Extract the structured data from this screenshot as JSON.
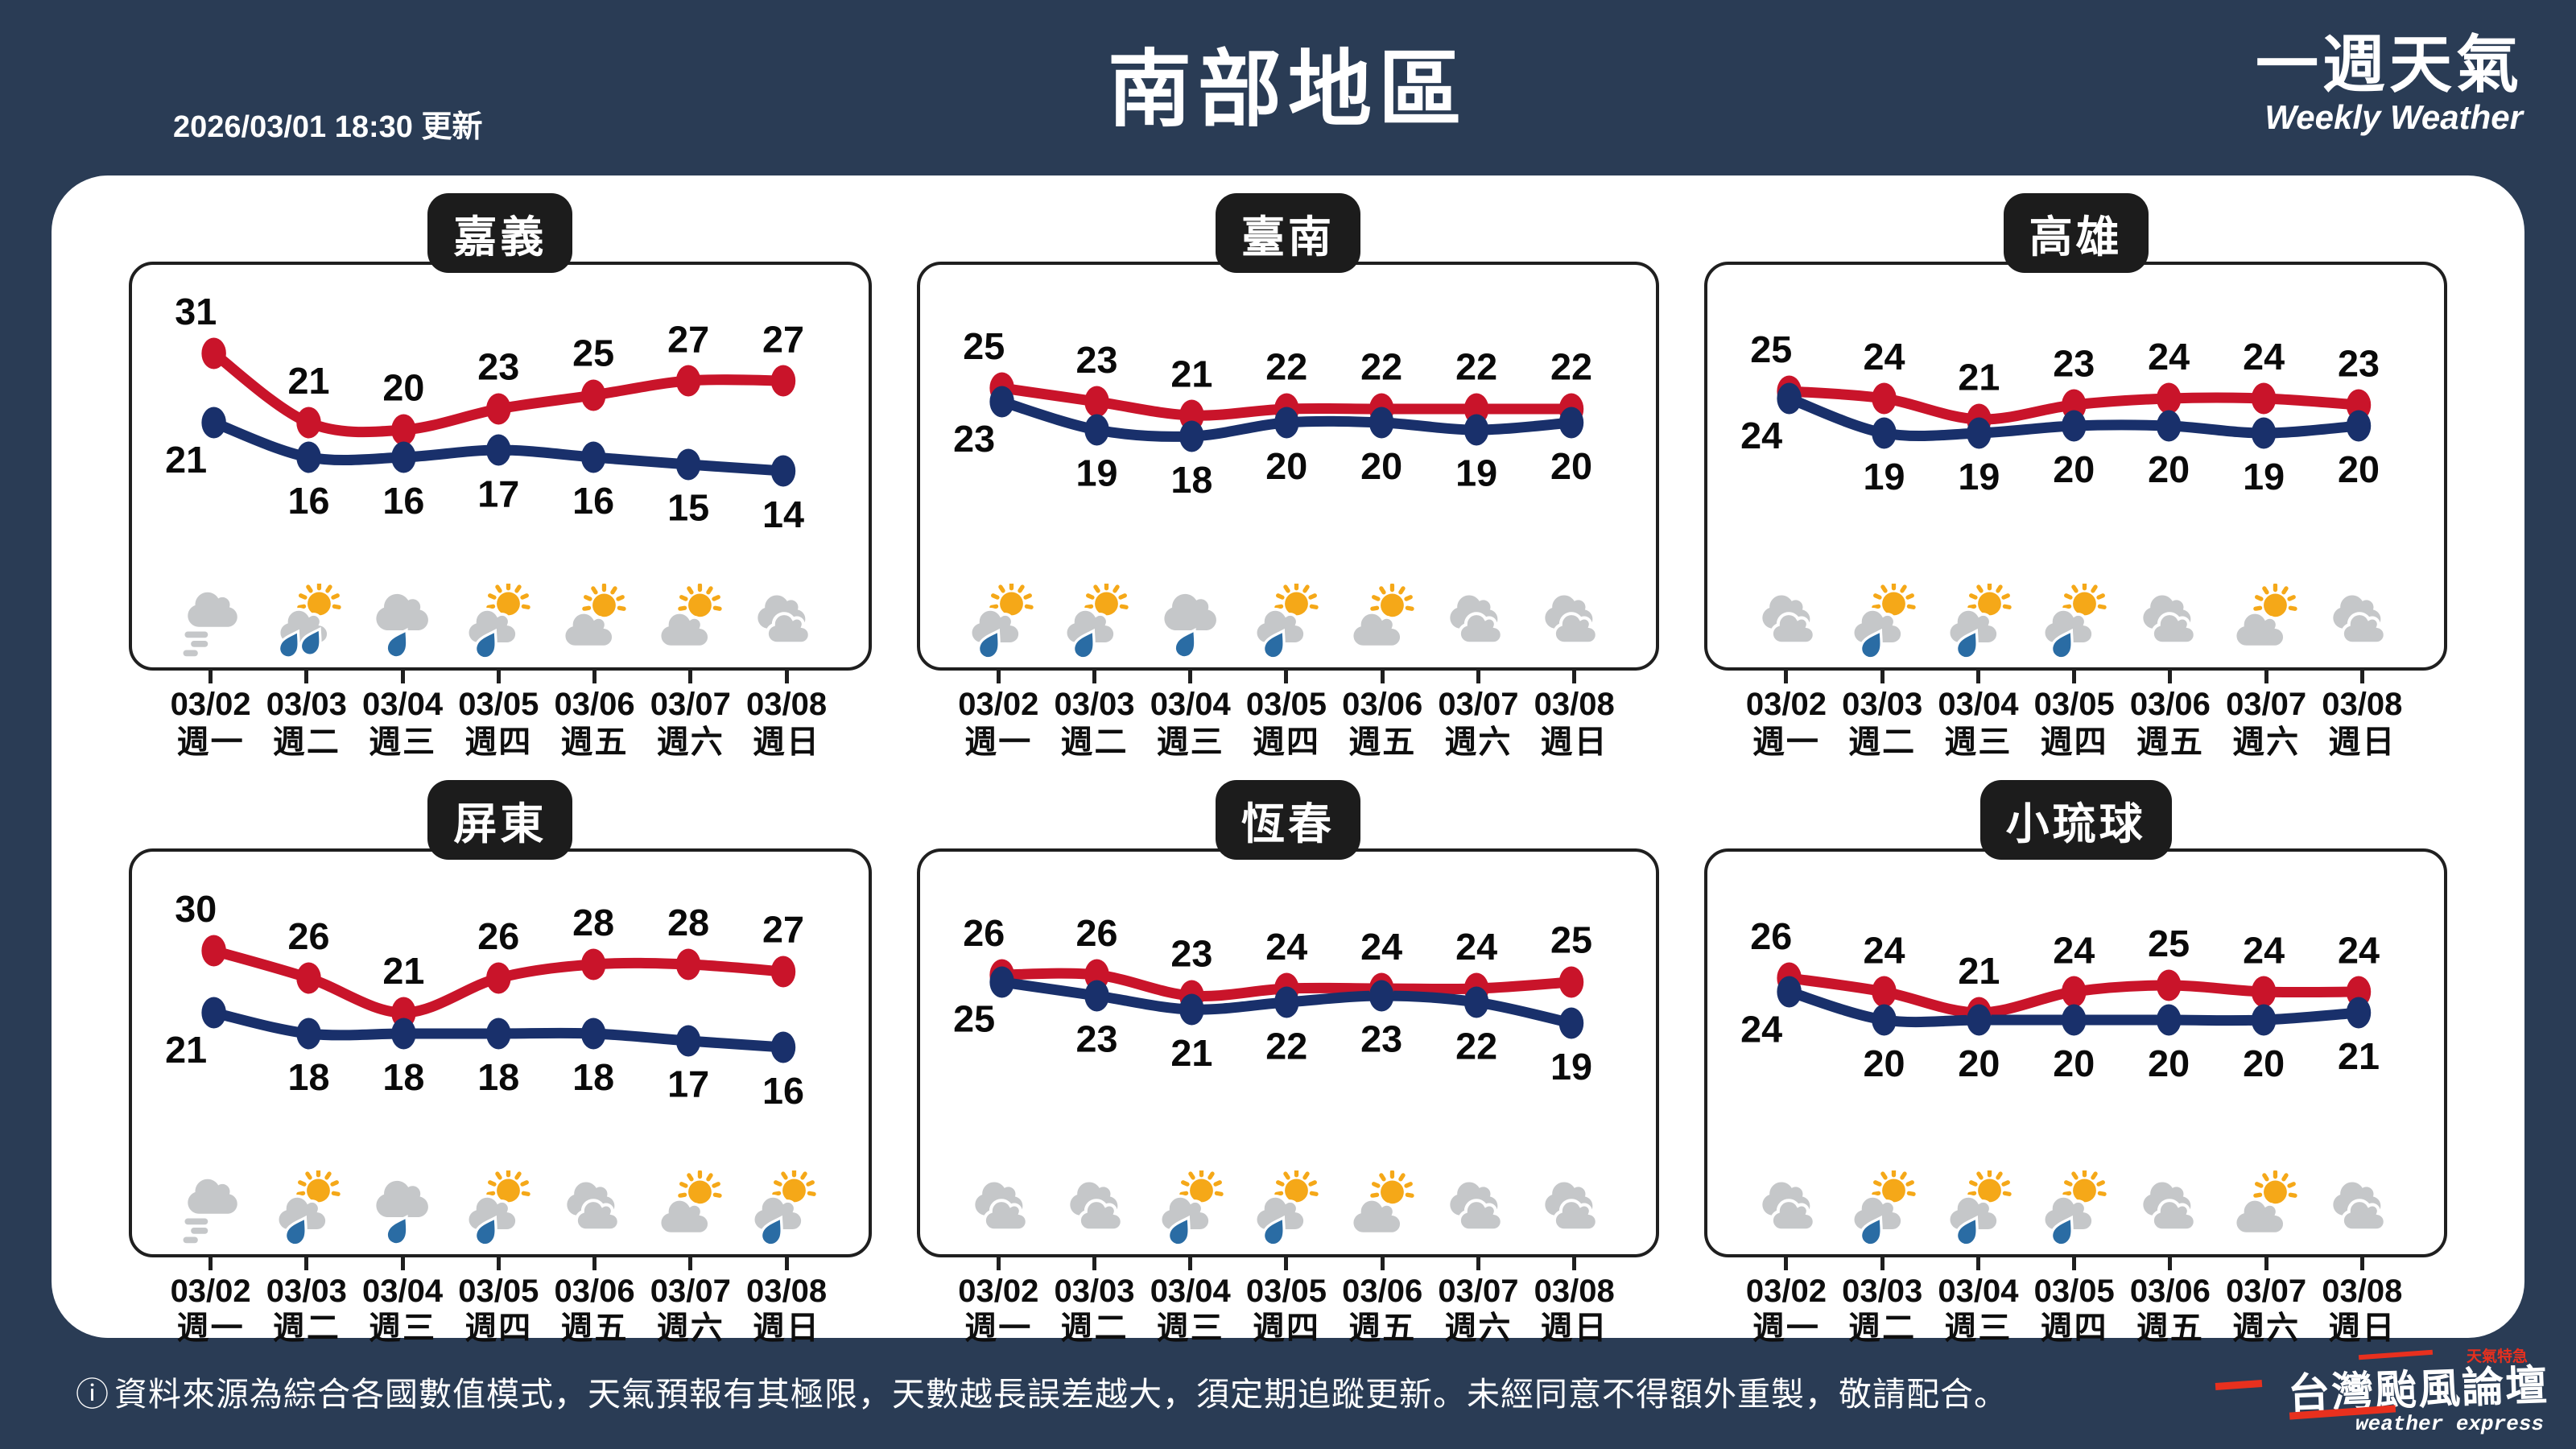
{
  "colors": {
    "background_navy": "#2A3C55",
    "high_line_red": "#C9142A",
    "low_line_blue": "#19306B",
    "panel_border_black": "#1F1F1F",
    "cloud_gray": "#C5C7C9",
    "sun_orange": "#F5A818",
    "raindrop_blue": "#2A6CA4",
    "logo_red": "#E8301E"
  },
  "header": {
    "updated": "2026/03/01 18:30 更新",
    "title": "南部地區",
    "subtitle_zh": "一週天氣",
    "subtitle_en": "Weekly Weather"
  },
  "days": [
    {
      "date": "03/02",
      "weekday": "週一"
    },
    {
      "date": "03/03",
      "weekday": "週二"
    },
    {
      "date": "03/04",
      "weekday": "週三"
    },
    {
      "date": "03/05",
      "weekday": "週四"
    },
    {
      "date": "03/06",
      "weekday": "週五"
    },
    {
      "date": "03/07",
      "weekday": "週六"
    },
    {
      "date": "03/08",
      "weekday": "週日"
    }
  ],
  "chart_data": [
    {
      "type": "line",
      "title": "嘉義",
      "unit": "°C",
      "categories": [
        "03/02",
        "03/03",
        "03/04",
        "03/05",
        "03/06",
        "03/07",
        "03/08"
      ],
      "weekdays": [
        "週一",
        "週二",
        "週三",
        "週四",
        "週五",
        "週六",
        "週日"
      ],
      "series": [
        {
          "name": "high",
          "color": "#C9142A",
          "values": [
            31,
            21,
            20,
            23,
            25,
            27,
            27
          ]
        },
        {
          "name": "low",
          "color": "#19306B",
          "values": [
            21,
            16,
            16,
            17,
            16,
            15,
            14
          ]
        }
      ],
      "icons": [
        "fog",
        "sun-cloud-rain-2",
        "cloud-rain",
        "sun-cloud-rain",
        "sun-cloud",
        "sun-cloud",
        "cloudy"
      ]
    },
    {
      "type": "line",
      "title": "臺南",
      "unit": "°C",
      "categories": [
        "03/02",
        "03/03",
        "03/04",
        "03/05",
        "03/06",
        "03/07",
        "03/08"
      ],
      "weekdays": [
        "週一",
        "週二",
        "週三",
        "週四",
        "週五",
        "週六",
        "週日"
      ],
      "series": [
        {
          "name": "high",
          "color": "#C9142A",
          "values": [
            25,
            23,
            21,
            22,
            22,
            22,
            22
          ]
        },
        {
          "name": "low",
          "color": "#19306B",
          "values": [
            23,
            19,
            18,
            20,
            20,
            19,
            20
          ]
        }
      ],
      "icons": [
        "sun-cloud-rain",
        "sun-cloud-rain",
        "cloud-rain",
        "sun-cloud-rain",
        "sun-cloud",
        "cloudy",
        "cloudy"
      ]
    },
    {
      "type": "line",
      "title": "高雄",
      "unit": "°C",
      "categories": [
        "03/02",
        "03/03",
        "03/04",
        "03/05",
        "03/06",
        "03/07",
        "03/08"
      ],
      "weekdays": [
        "週一",
        "週二",
        "週三",
        "週四",
        "週五",
        "週六",
        "週日"
      ],
      "series": [
        {
          "name": "high",
          "color": "#C9142A",
          "values": [
            25,
            24,
            21,
            23,
            24,
            24,
            23
          ]
        },
        {
          "name": "low",
          "color": "#19306B",
          "values": [
            24,
            19,
            19,
            20,
            20,
            19,
            20
          ]
        }
      ],
      "icons": [
        "cloudy",
        "sun-cloud-rain",
        "sun-cloud-rain",
        "sun-cloud-rain",
        "cloudy",
        "sun-cloud",
        "cloudy"
      ]
    },
    {
      "type": "line",
      "title": "屏東",
      "unit": "°C",
      "categories": [
        "03/02",
        "03/03",
        "03/04",
        "03/05",
        "03/06",
        "03/07",
        "03/08"
      ],
      "weekdays": [
        "週一",
        "週二",
        "週三",
        "週四",
        "週五",
        "週六",
        "週日"
      ],
      "series": [
        {
          "name": "high",
          "color": "#C9142A",
          "values": [
            30,
            26,
            21,
            26,
            28,
            28,
            27
          ]
        },
        {
          "name": "low",
          "color": "#19306B",
          "values": [
            21,
            18,
            18,
            18,
            18,
            17,
            16
          ]
        }
      ],
      "icons": [
        "fog",
        "sun-cloud-rain",
        "cloud-rain",
        "sun-cloud-rain",
        "cloudy",
        "sun-cloud",
        "sun-cloud-rain"
      ]
    },
    {
      "type": "line",
      "title": "恆春",
      "unit": "°C",
      "categories": [
        "03/02",
        "03/03",
        "03/04",
        "03/05",
        "03/06",
        "03/07",
        "03/08"
      ],
      "weekdays": [
        "週一",
        "週二",
        "週三",
        "週四",
        "週五",
        "週六",
        "週日"
      ],
      "series": [
        {
          "name": "high",
          "color": "#C9142A",
          "values": [
            26,
            26,
            23,
            24,
            24,
            24,
            25
          ]
        },
        {
          "name": "low",
          "color": "#19306B",
          "values": [
            25,
            23,
            21,
            22,
            23,
            22,
            19
          ]
        }
      ],
      "icons": [
        "cloudy",
        "cloudy",
        "sun-cloud-rain",
        "sun-cloud-rain",
        "sun-cloud",
        "cloudy",
        "cloudy"
      ]
    },
    {
      "type": "line",
      "title": "小琉球",
      "unit": "°C",
      "categories": [
        "03/02",
        "03/03",
        "03/04",
        "03/05",
        "03/06",
        "03/07",
        "03/08"
      ],
      "weekdays": [
        "週一",
        "週二",
        "週三",
        "週四",
        "週五",
        "週六",
        "週日"
      ],
      "series": [
        {
          "name": "high",
          "color": "#C9142A",
          "values": [
            26,
            24,
            21,
            24,
            25,
            24,
            24
          ]
        },
        {
          "name": "low",
          "color": "#19306B",
          "values": [
            24,
            20,
            20,
            20,
            20,
            20,
            21
          ]
        }
      ],
      "icons": [
        "cloudy",
        "sun-cloud-rain",
        "sun-cloud-rain",
        "sun-cloud-rain",
        "cloudy",
        "sun-cloud",
        "cloudy"
      ]
    }
  ],
  "footer": {
    "info_icon": "ⓘ",
    "disclaimer": "資料來源為綜合各國數值模式，天氣預報有其極限，天數越長誤差越大，須定期追蹤更新。未經同意不得額外重製，敬請配合。",
    "logo_title": "台灣颱風論壇",
    "logo_subtitle": "weather express",
    "logo_tag": "天氣特急"
  }
}
